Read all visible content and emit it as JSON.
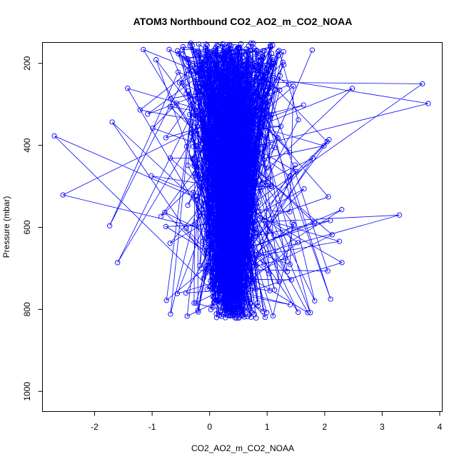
{
  "chart_data": {
    "type": "scatter",
    "title": "ATOM3 Northbound CO2_AO2_m_CO2_NOAA",
    "xlabel": "CO2_AO2_m_CO2_NOAA",
    "ylabel": "Pressure (mbar)",
    "xlim": [
      -2.9,
      4.05
    ],
    "ylim": [
      1050,
      150
    ],
    "y_reversed": true,
    "x_ticks": [
      -2,
      -1,
      0,
      1,
      2,
      3,
      4
    ],
    "y_ticks": [
      200,
      400,
      600,
      800,
      1000
    ],
    "plot_style": "points connected by lines (type 'b')",
    "point_shape": "open circle",
    "color": "#0000ff",
    "series": [
      {
        "profile_summary": "dense profile of points from about 150 to 820 mbar, centered near 0.4, with outliers reaching about -2.7 and 3.8",
        "notable_points": [
          {
            "x": 3.7,
            "y": 250
          },
          {
            "x": 3.8,
            "y": 298
          },
          {
            "x": -2.7,
            "y": 377
          },
          {
            "x": -2.55,
            "y": 521
          },
          {
            "x": 3.3,
            "y": 570
          },
          {
            "x": -1.6,
            "y": 686
          },
          {
            "x": 2.3,
            "y": 686
          },
          {
            "x": -0.75,
            "y": 778
          },
          {
            "x": 1.75,
            "y": 808
          }
        ]
      }
    ]
  }
}
